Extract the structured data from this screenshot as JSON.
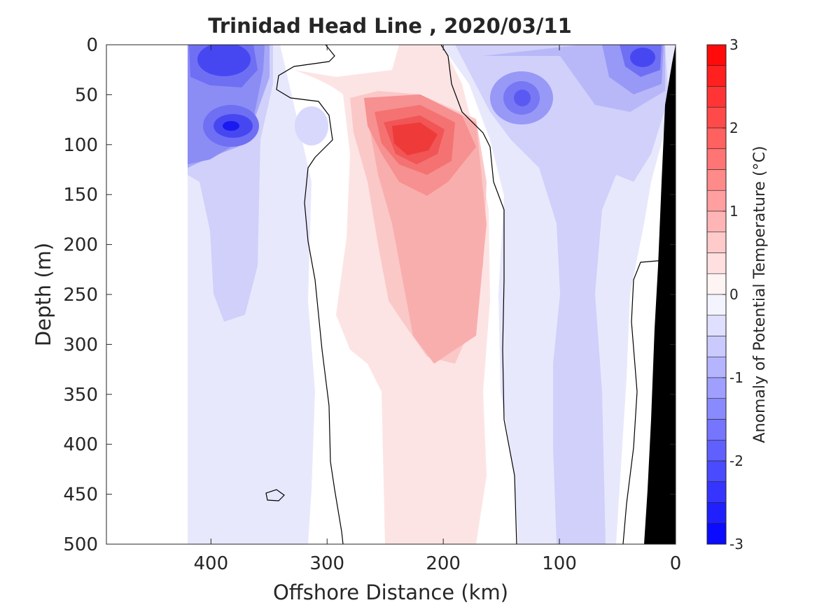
{
  "chart_data": {
    "type": "heatmap",
    "title": "Trinidad Head Line , 2020/03/11",
    "xlabel": "Offshore Distance (km)",
    "ylabel": "Depth (m)",
    "xlim": [
      0,
      490
    ],
    "x_reversed": true,
    "ylim": [
      0,
      500
    ],
    "y_reversed": true,
    "x_ticks": [
      "400",
      "300",
      "200",
      "100",
      "0"
    ],
    "x_tick_values": [
      400,
      300,
      200,
      100,
      0
    ],
    "y_ticks": [
      "0",
      "50",
      "100",
      "150",
      "200",
      "250",
      "300",
      "350",
      "400",
      "450",
      "500"
    ],
    "y_tick_values": [
      0,
      50,
      100,
      150,
      200,
      250,
      300,
      350,
      400,
      450,
      500
    ],
    "colorbar": {
      "label": "Anomaly of Potential Temperature (°C)",
      "range": [
        -3,
        3
      ],
      "step": 0.25,
      "tick_labels": [
        "3",
        "2",
        "1",
        "0",
        "-1",
        "-2",
        "-3"
      ],
      "tick_values": [
        3,
        2,
        1,
        0,
        -1,
        -2,
        -3
      ]
    },
    "colors": {
      "cold": "#0000ff",
      "warm": "#ff0000",
      "neutral": "#ffffff",
      "land": "#000000"
    },
    "grid": false,
    "features": [
      {
        "name": "warm core",
        "x": 225,
        "depth": 95,
        "value": 2.3
      },
      {
        "name": "cold surface patch",
        "x": 385,
        "depth": 20,
        "value": -2.0
      },
      {
        "name": "cold subsurface patch",
        "x": 383,
        "depth": 80,
        "value": -2.4
      },
      {
        "name": "cold surface patch",
        "x": 25,
        "depth": 20,
        "value": -1.8
      },
      {
        "name": "cold patch",
        "x": 130,
        "depth": 55,
        "value": -1.3
      }
    ]
  }
}
